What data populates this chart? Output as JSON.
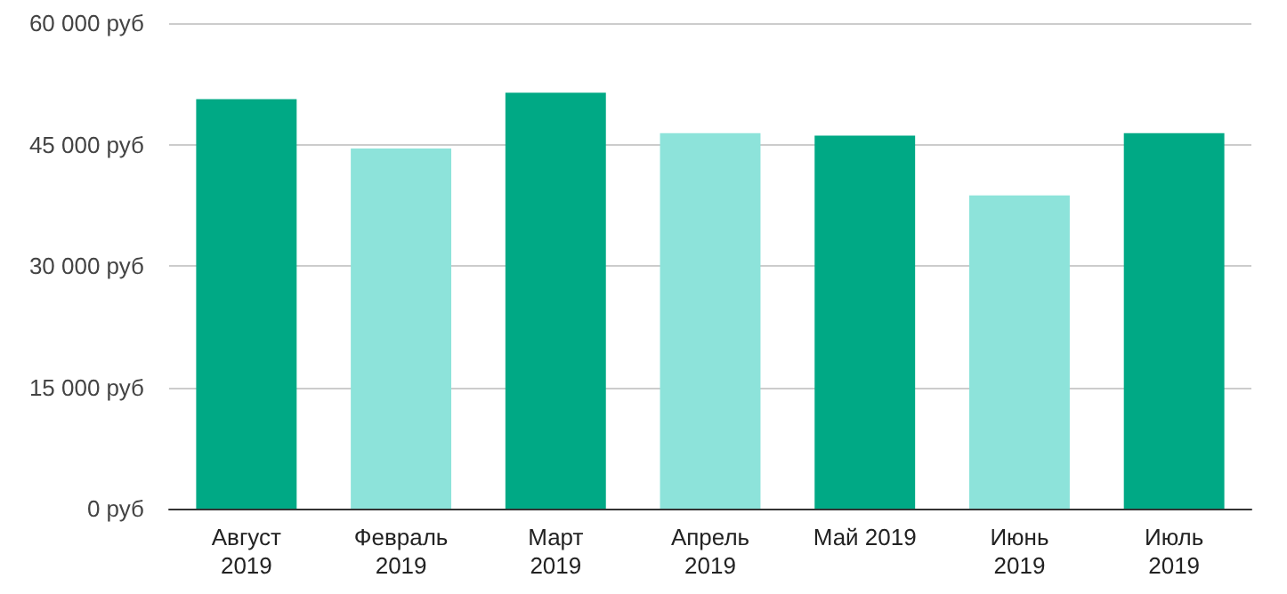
{
  "chart_data": {
    "type": "bar",
    "categories": [
      "Август 2019",
      "Февраль 2019",
      "Март 2019",
      "Апрель 2019",
      "Май 2019",
      "Июнь 2019",
      "Июль 2019"
    ],
    "values": [
      50600,
      44500,
      51400,
      46400,
      46100,
      38700,
      46400
    ],
    "colors": [
      "#00a985",
      "#8de3da",
      "#00a985",
      "#8de3da",
      "#00a985",
      "#8de3da",
      "#00a985"
    ],
    "ylim": [
      0,
      60000
    ],
    "yticks": [
      {
        "value": 0,
        "label": "0 руб"
      },
      {
        "value": 15000,
        "label": "15 000 руб"
      },
      {
        "value": 30000,
        "label": "30 000 руб"
      },
      {
        "value": 45000,
        "label": "45 000 руб"
      },
      {
        "value": 60000,
        "label": "60 000 руб"
      }
    ],
    "grid": "y"
  }
}
